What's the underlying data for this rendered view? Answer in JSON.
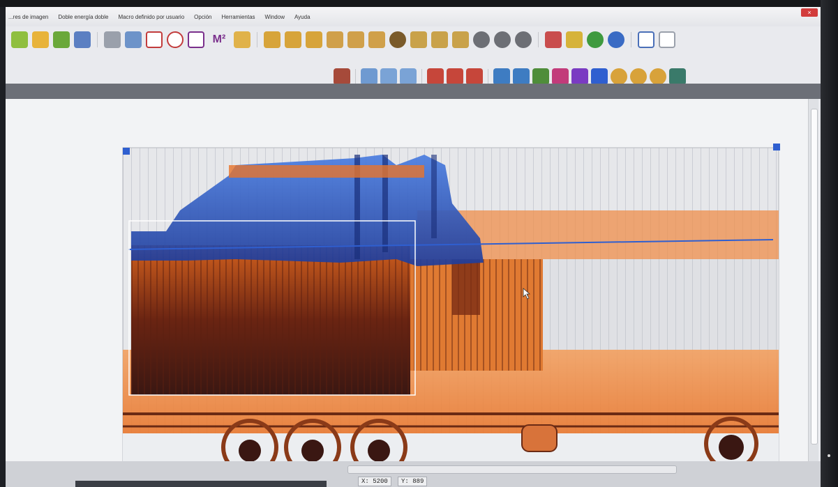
{
  "menu": {
    "items": [
      "...res de imagen",
      "Doble energía doble",
      "Macro definido por usuario",
      "Opción",
      "Herramientas",
      "Window",
      "Ayuda"
    ]
  },
  "window_controls": {
    "close": "×"
  },
  "toolbar": {
    "m2_label": "M²"
  },
  "status": {
    "x_label": "X: 5200",
    "y_label": "Y: 889"
  },
  "colors": {
    "organic": "#e8742a",
    "metal": "#2f5fd0",
    "dense": "#3a1712",
    "background": "#f2f3f5",
    "selection": "#ffffff"
  }
}
